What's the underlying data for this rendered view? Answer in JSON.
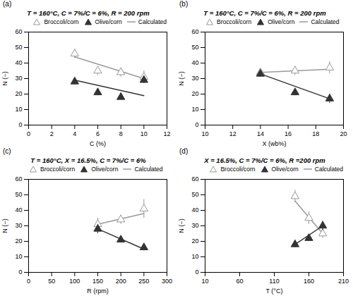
{
  "chart_data": [
    {
      "type": "scatter",
      "annotation": "(a)",
      "title": "T = 160°C, C = 7%/C = 6%, R = 200 rpm",
      "xlabel": "C (%)",
      "ylabel": "N (−)",
      "xlim": [
        0,
        12
      ],
      "ylim": [
        0,
        60
      ],
      "xticks": [
        0,
        2,
        4,
        6,
        8,
        10,
        12
      ],
      "yticks": [
        0,
        10,
        20,
        30,
        40,
        50,
        60
      ],
      "legend": "upper right",
      "series": [
        {
          "name": "Broccoli/corn",
          "type": "scatter",
          "marker": "triangle-open",
          "color": "#999999",
          "x": [
            4,
            6,
            8,
            10
          ],
          "values": [
            46,
            35,
            34,
            31
          ],
          "yerr": [
            3,
            3,
            3,
            4
          ]
        },
        {
          "name": "Olive/corn",
          "type": "scatter",
          "marker": "triangle",
          "color": "#333333",
          "x": [
            4,
            6,
            8,
            10
          ],
          "values": [
            28,
            21,
            18,
            29
          ],
          "yerr": [
            2,
            2,
            1.5,
            2
          ]
        },
        {
          "name": "Calculated",
          "type": "line",
          "color": "#999999",
          "x": [
            4,
            10
          ],
          "values": [
            44,
            30
          ]
        },
        {
          "name": "Calculated",
          "type": "line",
          "color": "#333333",
          "x": [
            4,
            10
          ],
          "values": [
            29,
            19
          ]
        }
      ]
    },
    {
      "type": "scatter",
      "annotation": "(b)",
      "title": "T = 160°C, C = 7%/C = 6%, R = 200 rpm",
      "xlabel": "X (wb%)",
      "ylabel": "N (−)",
      "xlim": [
        10,
        20
      ],
      "ylim": [
        0,
        60
      ],
      "xticks": [
        10,
        12,
        14,
        16,
        18,
        20
      ],
      "yticks": [
        0,
        10,
        20,
        30,
        40,
        50,
        60
      ],
      "legend": "upper left",
      "series": [
        {
          "name": "Broccoli/corn",
          "type": "scatter",
          "marker": "triangle-open",
          "color": "#999999",
          "x": [
            14,
            16.5,
            19
          ],
          "values": [
            34,
            35,
            37
          ],
          "yerr": [
            2,
            3,
            4
          ]
        },
        {
          "name": "Olive/corn",
          "type": "scatter",
          "marker": "triangle",
          "color": "#333333",
          "x": [
            14,
            16.5,
            19
          ],
          "values": [
            33,
            21,
            17
          ],
          "yerr": [
            2,
            2,
            3
          ]
        },
        {
          "name": "Calculated",
          "type": "line",
          "color": "#999999",
          "x": [
            14,
            19
          ],
          "values": [
            34,
            36
          ]
        },
        {
          "name": "Calculated",
          "type": "line",
          "color": "#333333",
          "x": [
            14,
            19
          ],
          "values": [
            33,
            17
          ]
        }
      ]
    },
    {
      "type": "scatter",
      "annotation": "(c)",
      "title": "T = 160°C, X = 16.5%, C = 7%/C = 6%",
      "xlabel": "R (rpm)",
      "ylabel": "N (−)",
      "xlim": [
        0,
        300
      ],
      "ylim": [
        0,
        60
      ],
      "xticks": [
        0,
        50,
        100,
        150,
        200,
        250,
        300
      ],
      "yticks": [
        0,
        10,
        20,
        30,
        40,
        50,
        60
      ],
      "legend": "upper left",
      "series": [
        {
          "name": "Broccoli/corn",
          "type": "scatter",
          "marker": "triangle-open",
          "color": "#999999",
          "x": [
            150,
            200,
            250
          ],
          "values": [
            31,
            34,
            41
          ],
          "yerr": [
            4,
            3,
            6
          ]
        },
        {
          "name": "Olive/corn",
          "type": "scatter",
          "marker": "triangle",
          "color": "#333333",
          "x": [
            150,
            200,
            250
          ],
          "values": [
            28,
            21,
            16
          ],
          "yerr": [
            3,
            2,
            2
          ]
        },
        {
          "name": "Calculated",
          "type": "line",
          "color": "#999999",
          "x": [
            150,
            250
          ],
          "values": [
            31,
            38
          ]
        },
        {
          "name": "Calculated",
          "type": "line",
          "color": "#333333",
          "x": [
            150,
            250
          ],
          "values": [
            28,
            15
          ]
        }
      ]
    },
    {
      "type": "scatter",
      "annotation": "(d)",
      "title": "X = 16.5%, C = 7%/C = 6%, R =200 rpm",
      "xlabel": "T (°C)",
      "ylabel": "N (−)",
      "xlim": [
        10,
        210
      ],
      "ylim": [
        0,
        60
      ],
      "xticks": [
        10,
        60,
        110,
        160,
        210
      ],
      "yticks": [
        0,
        10,
        20,
        30,
        40,
        50,
        60
      ],
      "legend": "upper right",
      "series": [
        {
          "name": "Broccoli/corn",
          "type": "scatter",
          "marker": "triangle-open",
          "color": "#999999",
          "x": [
            140,
            160,
            180
          ],
          "values": [
            49,
            35,
            25
          ],
          "yerr": [
            4,
            4,
            3
          ]
        },
        {
          "name": "Olive/corn",
          "type": "scatter",
          "marker": "triangle",
          "color": "#333333",
          "x": [
            140,
            160,
            180
          ],
          "values": [
            18,
            22,
            30
          ],
          "yerr": [
            2,
            2,
            3
          ]
        },
        {
          "name": "Calculated",
          "type": "line",
          "color": "#999999",
          "x": [
            140,
            180
          ],
          "values": [
            46,
            25
          ]
        },
        {
          "name": "Calculated",
          "type": "line",
          "color": "#333333",
          "x": [
            140,
            180
          ],
          "values": [
            18,
            30
          ]
        }
      ]
    }
  ]
}
